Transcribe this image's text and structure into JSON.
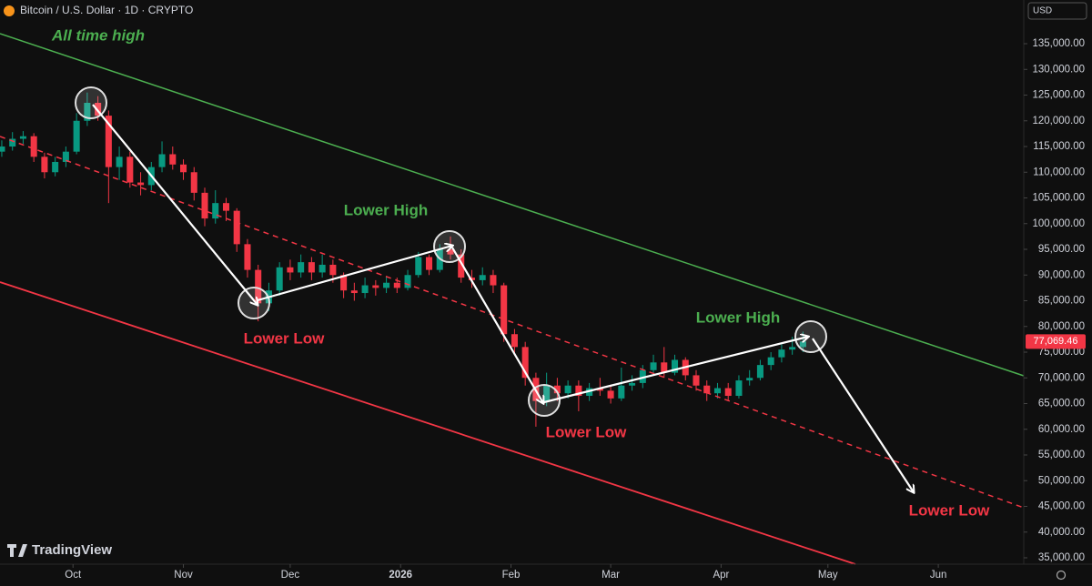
{
  "chart_data": {
    "type": "candlestick",
    "title": "Bitcoin / U.S. Dollar · 1D · CRYPTO",
    "currency": "USD",
    "up_color": "#089981",
    "down_color": "#f23645",
    "x": [
      -20,
      -17,
      -14,
      -11,
      -8,
      -5,
      -2,
      1,
      4,
      7,
      10,
      13,
      16,
      19,
      22,
      25,
      28,
      31,
      34,
      37,
      40,
      43,
      46,
      49,
      52,
      55,
      58,
      61,
      64,
      67,
      70,
      73,
      76,
      79,
      82,
      85,
      88,
      91,
      94,
      97,
      100,
      103,
      106,
      109,
      112,
      115,
      118,
      121,
      124,
      127,
      130,
      133,
      136,
      139,
      142,
      145,
      148,
      151,
      154,
      157,
      160,
      163,
      166,
      169,
      172,
      175,
      178,
      181,
      184,
      187,
      190,
      193,
      196,
      199,
      202,
      205
    ],
    "open": [
      114000,
      115000,
      116500,
      117000,
      113000,
      110000,
      112000,
      114000,
      120000,
      123500,
      121000,
      111000,
      113000,
      108000,
      107500,
      111000,
      113500,
      111500,
      110000,
      106000,
      101000,
      104000,
      102500,
      96000,
      91000,
      84500,
      87000,
      91500,
      90500,
      92500,
      90500,
      92000,
      90000,
      87000,
      86500,
      88000,
      87500,
      88500,
      87500,
      90000,
      93500,
      91000,
      95000,
      94000,
      89500,
      89000,
      90000,
      88000,
      78500,
      76000,
      70000,
      65500,
      68500,
      67000,
      68500,
      66500,
      68000,
      67500,
      66000,
      68500,
      69000,
      71500,
      73000,
      71000,
      73500,
      70500,
      68500,
      67000,
      68000,
      66500,
      69500,
      70000,
      72500,
      74000,
      75500,
      76000
    ],
    "high": [
      116200,
      117800,
      118000,
      117600,
      113800,
      113000,
      115000,
      121500,
      125500,
      124800,
      122000,
      115000,
      114000,
      110000,
      112000,
      116000,
      115000,
      112500,
      111000,
      107000,
      106500,
      105000,
      103000,
      97000,
      92000,
      88500,
      92500,
      93000,
      94000,
      93500,
      94000,
      93000,
      90500,
      88500,
      89500,
      89000,
      89800,
      89500,
      91000,
      94500,
      94000,
      96000,
      97500,
      95000,
      91000,
      91500,
      91000,
      88500,
      79500,
      77000,
      71000,
      71000,
      70000,
      69500,
      69500,
      69000,
      70000,
      68500,
      72000,
      70500,
      72500,
      74500,
      76000,
      74500,
      74000,
      71500,
      69500,
      69000,
      69000,
      70500,
      71500,
      73500,
      75000,
      76500,
      78000,
      79000
    ],
    "low": [
      113000,
      114200,
      115500,
      112000,
      108800,
      109200,
      111000,
      113500,
      119000,
      120000,
      104000,
      108500,
      107000,
      105500,
      106500,
      110000,
      110500,
      108500,
      104500,
      99500,
      100000,
      100500,
      94500,
      89500,
      81000,
      83000,
      86000,
      89000,
      89500,
      89000,
      89500,
      88500,
      85500,
      85000,
      85500,
      86000,
      86500,
      86500,
      87000,
      89500,
      90000,
      90500,
      93000,
      88500,
      87500,
      88000,
      86500,
      77000,
      74500,
      68500,
      60500,
      64500,
      65500,
      66000,
      63500,
      65500,
      66500,
      65000,
      65500,
      67500,
      68000,
      70500,
      70000,
      70500,
      69500,
      67500,
      65500,
      66000,
      65500,
      66000,
      68500,
      69500,
      71500,
      73000,
      74500,
      75000
    ],
    "close": [
      115000,
      116500,
      117000,
      113000,
      110000,
      112000,
      114000,
      120000,
      123500,
      121000,
      111000,
      113000,
      108000,
      107500,
      111000,
      113500,
      111500,
      110000,
      106000,
      101000,
      104000,
      102500,
      96000,
      91000,
      84500,
      87000,
      91500,
      90500,
      92500,
      90500,
      92000,
      90000,
      87000,
      86500,
      88000,
      87500,
      88500,
      87500,
      90000,
      93500,
      91000,
      95000,
      94000,
      89500,
      89000,
      90000,
      88000,
      78500,
      76000,
      70000,
      65500,
      68500,
      67000,
      68500,
      66500,
      68000,
      67500,
      66000,
      68500,
      69000,
      71500,
      73000,
      71000,
      73500,
      70500,
      68500,
      67000,
      68000,
      66500,
      69500,
      70000,
      72500,
      74000,
      75500,
      76000,
      77069.46
    ],
    "last_price": {
      "value": 77069.46,
      "label": "77,069.46"
    },
    "xlim": [
      -20.5,
      267
    ],
    "xticks": [
      {
        "value": 0,
        "label": "Oct"
      },
      {
        "value": 31,
        "label": "Nov"
      },
      {
        "value": 61,
        "label": "Dec"
      },
      {
        "value": 92,
        "label": "2026"
      },
      {
        "value": 123,
        "label": "Feb"
      },
      {
        "value": 151,
        "label": "Mar"
      },
      {
        "value": 182,
        "label": "Apr"
      },
      {
        "value": 212,
        "label": "May"
      },
      {
        "value": 243,
        "label": "Jun"
      }
    ],
    "ylim": [
      33760,
      143500
    ],
    "yticks": [
      {
        "value": 35000,
        "label": "35,000.00"
      },
      {
        "value": 40000,
        "label": "40,000.00"
      },
      {
        "value": 45000,
        "label": "45,000.00"
      },
      {
        "value": 50000,
        "label": "50,000.00"
      },
      {
        "value": 55000,
        "label": "55,000.00"
      },
      {
        "value": 60000,
        "label": "60,000.00"
      },
      {
        "value": 65000,
        "label": "65,000.00"
      },
      {
        "value": 70000,
        "label": "70,000.00"
      },
      {
        "value": 75000,
        "label": "75,000.00"
      },
      {
        "value": 80000,
        "label": "80,000.00"
      },
      {
        "value": 85000,
        "label": "85,000.00"
      },
      {
        "value": 90000,
        "label": "90,000.00"
      },
      {
        "value": 95000,
        "label": "95,000.00"
      },
      {
        "value": 100000,
        "label": "100,000.00"
      },
      {
        "value": 105000,
        "label": "105,000.00"
      },
      {
        "value": 110000,
        "label": "110,000.00"
      },
      {
        "value": 115000,
        "label": "115,000.00"
      },
      {
        "value": 120000,
        "label": "120,000.00"
      },
      {
        "value": 125000,
        "label": "125,000.00"
      },
      {
        "value": 130000,
        "label": "130,000.00"
      },
      {
        "value": 135000,
        "label": "135,000.00"
      }
    ],
    "annotations": [
      "All time high",
      "Lower High",
      "Lower Low",
      "Lower Low",
      "Lower High",
      "Lower Low"
    ],
    "watermark": "TradingView"
  }
}
